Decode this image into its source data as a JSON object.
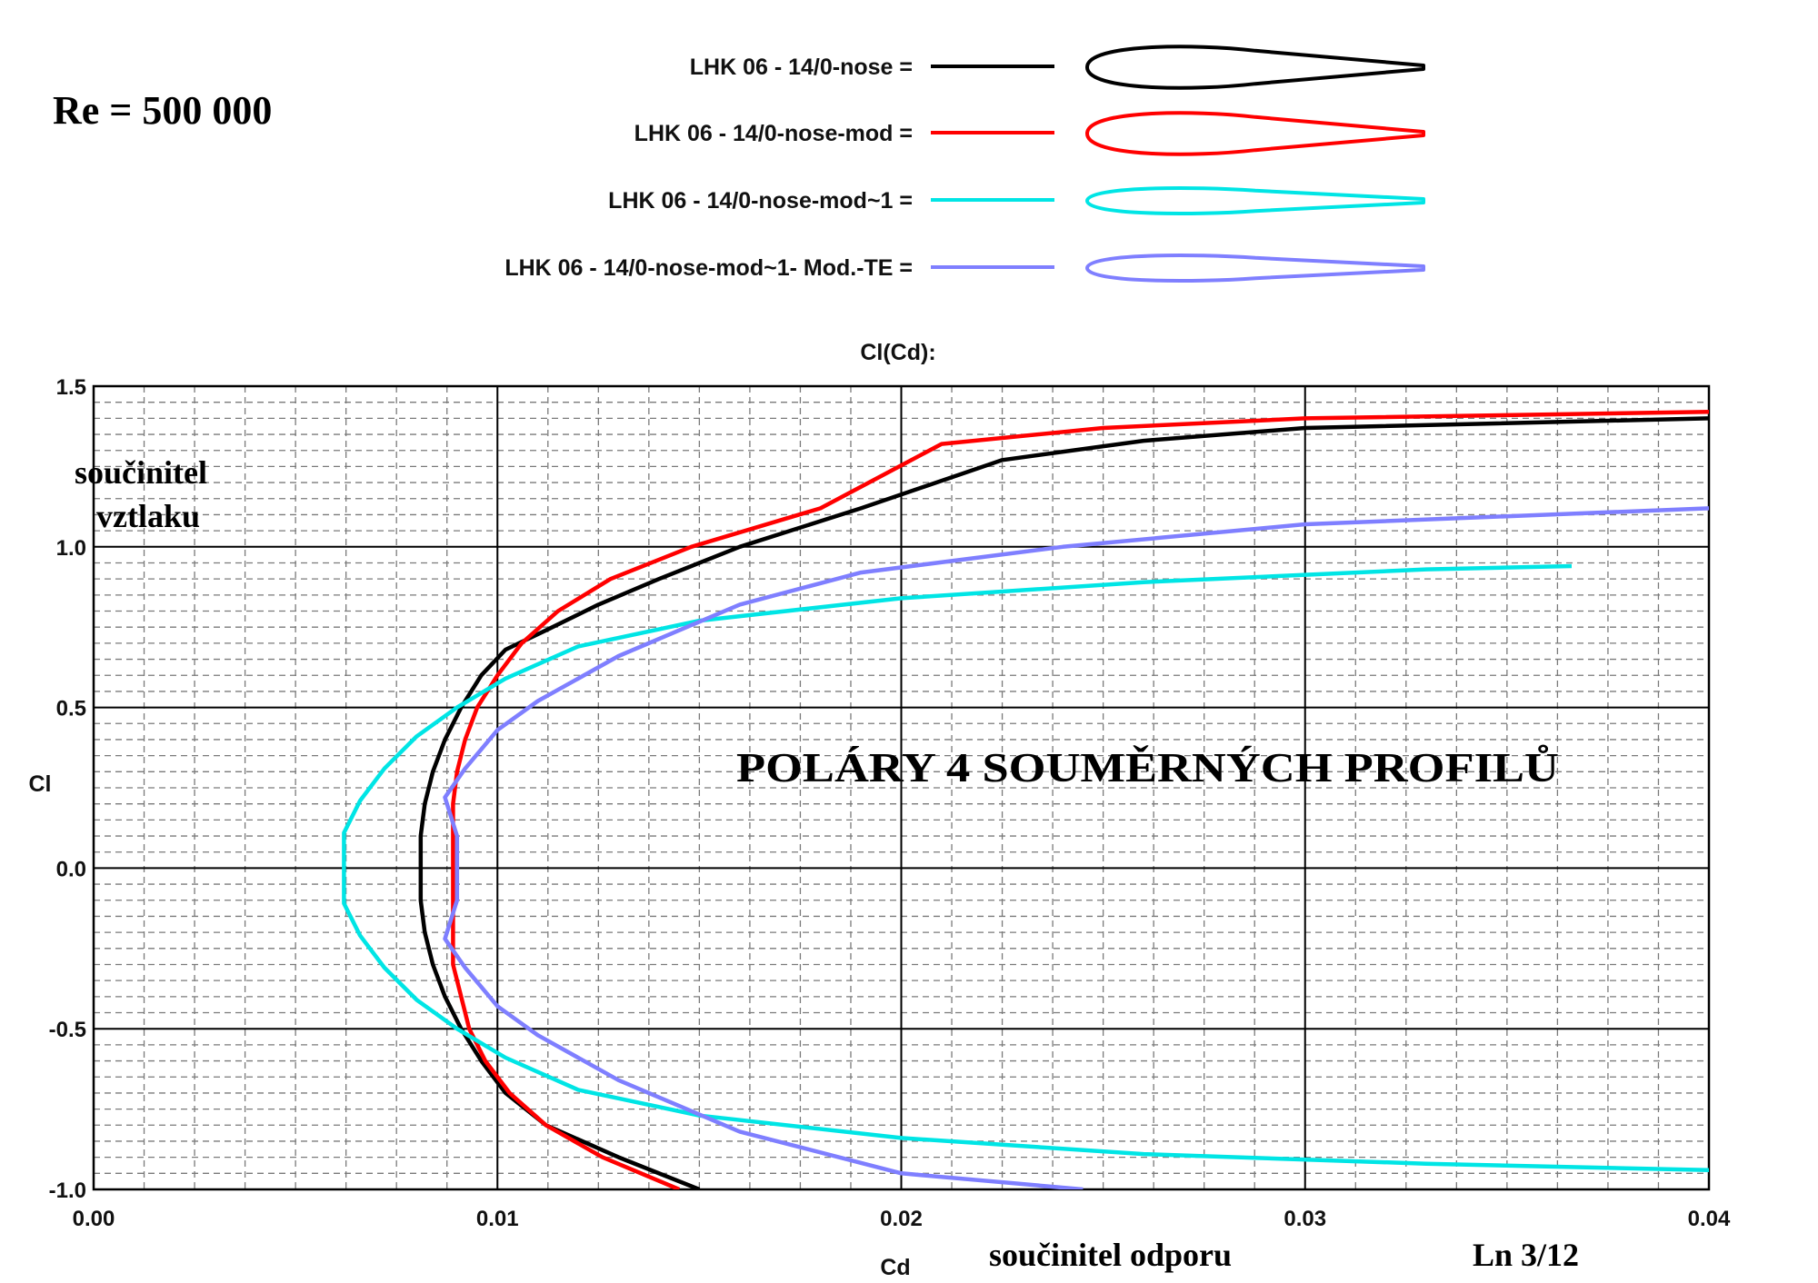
{
  "header": {
    "reynolds": "Re = 500 000"
  },
  "legend": [
    {
      "label": "LHK   06  -  14/0-nose =",
      "color": "#000000"
    },
    {
      "label": "LHK   06  -  14/0-nose-mod =",
      "color": "#ff0000"
    },
    {
      "label": "LHK   06  -  14/0-nose-mod~1 =",
      "color": "#00e5e5"
    },
    {
      "label": "LHK   06  -  14/0-nose-mod~1- Mod.-TE =",
      "color": "#7f7fff"
    }
  ],
  "annotations": {
    "ylabel_cz_line1": "součinitel",
    "ylabel_cz_line2": "vztlaku",
    "xlabel_cz": "součinitel  odporu",
    "overlay_title": "POLÁRY  4  SOUMĚRNÝCH  PROFILŮ",
    "page_ref": "Ln 3/12"
  },
  "chart_data": {
    "type": "line",
    "title": "Cl(Cd):",
    "xlabel": "Cd",
    "ylabel": "Cl",
    "xlim": [
      0.0,
      0.04
    ],
    "ylim": [
      -1.0,
      1.5
    ],
    "xticks": [
      "0.00",
      "0.01",
      "0.02",
      "0.03",
      "0.04"
    ],
    "yticks": [
      "1.5",
      "1.0",
      "0.5",
      "0.0",
      "-0.5",
      "-1.0"
    ],
    "grid": true,
    "legend_position": "top",
    "series": [
      {
        "name": "LHK   06  -  14/0-nose",
        "color": "#000000",
        "points": [
          [
            0.015,
            -1.0
          ],
          [
            0.013,
            -0.9
          ],
          [
            0.0112,
            -0.8
          ],
          [
            0.0102,
            -0.7
          ],
          [
            0.0096,
            -0.6
          ],
          [
            0.0091,
            -0.5
          ],
          [
            0.0087,
            -0.4
          ],
          [
            0.0084,
            -0.3
          ],
          [
            0.0082,
            -0.2
          ],
          [
            0.0081,
            -0.1
          ],
          [
            0.0081,
            0.0
          ],
          [
            0.0081,
            0.1
          ],
          [
            0.0082,
            0.2
          ],
          [
            0.0084,
            0.3
          ],
          [
            0.0087,
            0.4
          ],
          [
            0.0091,
            0.5
          ],
          [
            0.0096,
            0.6
          ],
          [
            0.0102,
            0.68
          ],
          [
            0.0112,
            0.74
          ],
          [
            0.0125,
            0.82
          ],
          [
            0.014,
            0.9
          ],
          [
            0.016,
            1.0
          ],
          [
            0.019,
            1.12
          ],
          [
            0.0225,
            1.27
          ],
          [
            0.026,
            1.33
          ],
          [
            0.03,
            1.37
          ],
          [
            0.04,
            1.4
          ]
        ]
      },
      {
        "name": "LHK   06  -  14/0-nose-mod",
        "color": "#ff0000",
        "points": [
          [
            0.0145,
            -1.0
          ],
          [
            0.0126,
            -0.9
          ],
          [
            0.0112,
            -0.8
          ],
          [
            0.0103,
            -0.7
          ],
          [
            0.0097,
            -0.6
          ],
          [
            0.0093,
            -0.5
          ],
          [
            0.0091,
            -0.4
          ],
          [
            0.0089,
            -0.3
          ],
          [
            0.0089,
            -0.2
          ],
          [
            0.0089,
            -0.1
          ],
          [
            0.0089,
            0.0
          ],
          [
            0.0089,
            0.1
          ],
          [
            0.0089,
            0.2
          ],
          [
            0.009,
            0.3
          ],
          [
            0.0092,
            0.4
          ],
          [
            0.0095,
            0.5
          ],
          [
            0.01,
            0.6
          ],
          [
            0.0106,
            0.7
          ],
          [
            0.0115,
            0.8
          ],
          [
            0.0128,
            0.9
          ],
          [
            0.0148,
            1.0
          ],
          [
            0.018,
            1.12
          ],
          [
            0.021,
            1.32
          ],
          [
            0.025,
            1.37
          ],
          [
            0.03,
            1.4
          ],
          [
            0.04,
            1.42
          ]
        ]
      },
      {
        "name": "LHK   06  -  14/0-nose-mod~1",
        "color": "#00e5e5",
        "points": [
          [
            0.04,
            -0.94
          ],
          [
            0.033,
            -0.92
          ],
          [
            0.026,
            -0.89
          ],
          [
            0.02,
            -0.84
          ],
          [
            0.015,
            -0.77
          ],
          [
            0.012,
            -0.69
          ],
          [
            0.0102,
            -0.59
          ],
          [
            0.009,
            -0.5
          ],
          [
            0.008,
            -0.41
          ],
          [
            0.0072,
            -0.31
          ],
          [
            0.0066,
            -0.21
          ],
          [
            0.0062,
            -0.11
          ],
          [
            0.0062,
            0.0
          ],
          [
            0.0062,
            0.11
          ],
          [
            0.0066,
            0.21
          ],
          [
            0.0072,
            0.31
          ],
          [
            0.008,
            0.41
          ],
          [
            0.009,
            0.5
          ],
          [
            0.0102,
            0.59
          ],
          [
            0.012,
            0.69
          ],
          [
            0.015,
            0.77
          ],
          [
            0.02,
            0.84
          ],
          [
            0.026,
            0.89
          ],
          [
            0.033,
            0.93
          ],
          [
            0.0366,
            0.94
          ]
        ]
      },
      {
        "name": "LHK   06  -  14/0-nose-mod~1- Mod.-TE",
        "color": "#7f7fff",
        "points": [
          [
            0.0245,
            -1.0
          ],
          [
            0.02,
            -0.95
          ],
          [
            0.016,
            -0.82
          ],
          [
            0.013,
            -0.66
          ],
          [
            0.011,
            -0.52
          ],
          [
            0.01,
            -0.43
          ],
          [
            0.0092,
            -0.31
          ],
          [
            0.0087,
            -0.22
          ],
          [
            0.009,
            -0.1
          ],
          [
            0.009,
            0.0
          ],
          [
            0.009,
            0.1
          ],
          [
            0.0087,
            0.22
          ],
          [
            0.0092,
            0.31
          ],
          [
            0.01,
            0.43
          ],
          [
            0.011,
            0.52
          ],
          [
            0.013,
            0.66
          ],
          [
            0.016,
            0.82
          ],
          [
            0.019,
            0.92
          ],
          [
            0.024,
            1.0
          ],
          [
            0.03,
            1.07
          ],
          [
            0.04,
            1.12
          ]
        ]
      }
    ]
  }
}
